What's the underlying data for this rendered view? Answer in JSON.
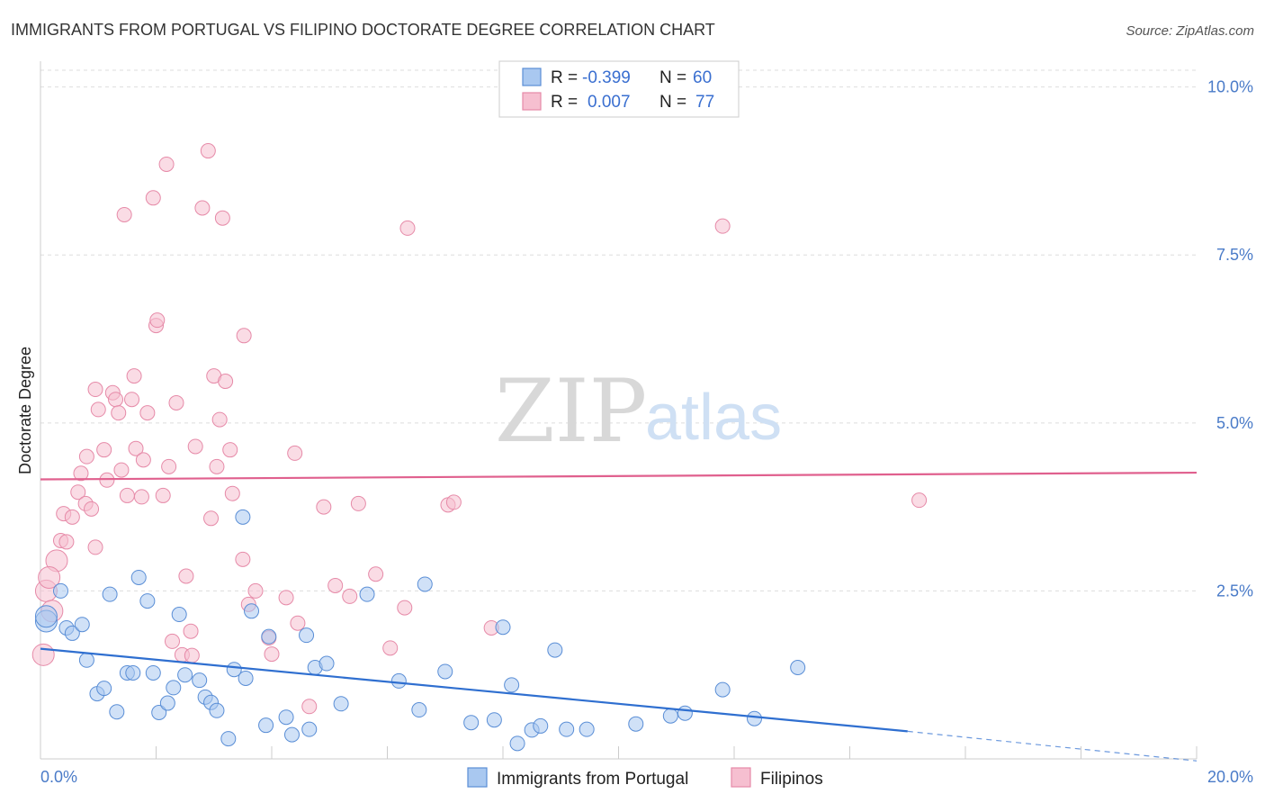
{
  "title": "IMMIGRANTS FROM PORTUGAL VS FILIPINO DOCTORATE DEGREE CORRELATION CHART",
  "source": "Source: ZipAtlas.com",
  "watermark": {
    "zip": "ZIP",
    "atlas": "atlas"
  },
  "colors": {
    "blue_fill": "#a9c8f0",
    "blue_stroke": "#5a8ed6",
    "blue_line": "#2f6fd0",
    "pink_fill": "#f6bfd0",
    "pink_stroke": "#e68aa8",
    "pink_line": "#e0608e",
    "grid": "#dddddd",
    "tick_text": "#4a7bc8"
  },
  "stats": {
    "blue": {
      "r_label": "R =",
      "r_value": "-0.399",
      "n_label": "N =",
      "n_value": "60"
    },
    "pink": {
      "r_label": "R =",
      "r_value": "0.007",
      "n_label": "N =",
      "n_value": "77"
    }
  },
  "chart_data": {
    "type": "scatter",
    "title": "IMMIGRANTS FROM PORTUGAL VS FILIPINO DOCTORATE DEGREE CORRELATION CHART",
    "xlabel": "",
    "ylabel": "Doctorate Degree",
    "xlim": [
      0,
      20
    ],
    "ylim": [
      0,
      10.25
    ],
    "x_tick_labels": [
      {
        "value": 0,
        "label": "0.0%"
      },
      {
        "value": 20,
        "label": "20.0%"
      }
    ],
    "y_tick_labels": [
      {
        "value": 2.5,
        "label": "2.5%"
      },
      {
        "value": 5.0,
        "label": "5.0%"
      },
      {
        "value": 7.5,
        "label": "7.5%"
      },
      {
        "value": 10.0,
        "label": "10.0%"
      }
    ],
    "grid": true,
    "legend_position": "bottom-center",
    "series": [
      {
        "name": "Immigrants from Portugal",
        "color": "#a9c8f0",
        "trend": {
          "x": [
            0,
            15
          ],
          "y": [
            1.64,
            0.41
          ],
          "dashed_extension_to": [
            20,
            -0.03
          ]
        },
        "points": [
          [
            0.1,
            2.05
          ],
          [
            0.1,
            2.12
          ],
          [
            0.35,
            2.5
          ],
          [
            0.45,
            1.95
          ],
          [
            0.55,
            1.87
          ],
          [
            0.72,
            2.0
          ],
          [
            0.8,
            1.47
          ],
          [
            0.98,
            0.97
          ],
          [
            1.1,
            1.05
          ],
          [
            1.2,
            2.45
          ],
          [
            1.32,
            0.7
          ],
          [
            1.5,
            1.28
          ],
          [
            1.6,
            1.28
          ],
          [
            1.7,
            2.7
          ],
          [
            1.85,
            2.35
          ],
          [
            1.95,
            1.28
          ],
          [
            2.05,
            0.69
          ],
          [
            2.2,
            0.83
          ],
          [
            2.3,
            1.06
          ],
          [
            2.4,
            2.15
          ],
          [
            2.5,
            1.25
          ],
          [
            2.75,
            1.17
          ],
          [
            2.85,
            0.92
          ],
          [
            2.95,
            0.84
          ],
          [
            3.05,
            0.72
          ],
          [
            3.25,
            0.3
          ],
          [
            3.35,
            1.33
          ],
          [
            3.5,
            3.6
          ],
          [
            3.55,
            1.2
          ],
          [
            3.65,
            2.2
          ],
          [
            3.9,
            0.5
          ],
          [
            3.95,
            1.82
          ],
          [
            4.25,
            0.62
          ],
          [
            4.35,
            0.36
          ],
          [
            4.6,
            1.84
          ],
          [
            4.65,
            0.44
          ],
          [
            4.75,
            1.36
          ],
          [
            4.95,
            1.42
          ],
          [
            5.2,
            0.82
          ],
          [
            5.65,
            2.45
          ],
          [
            6.2,
            1.16
          ],
          [
            6.55,
            0.73
          ],
          [
            6.65,
            2.6
          ],
          [
            7.0,
            1.3
          ],
          [
            7.45,
            0.54
          ],
          [
            7.85,
            0.58
          ],
          [
            8.0,
            1.96
          ],
          [
            8.15,
            1.1
          ],
          [
            8.25,
            0.23
          ],
          [
            8.5,
            0.43
          ],
          [
            8.65,
            0.49
          ],
          [
            8.9,
            1.62
          ],
          [
            9.1,
            0.44
          ],
          [
            9.45,
            0.44
          ],
          [
            10.3,
            0.52
          ],
          [
            10.9,
            0.64
          ],
          [
            11.15,
            0.68
          ],
          [
            11.8,
            1.03
          ],
          [
            12.35,
            0.6
          ],
          [
            13.1,
            1.36
          ]
        ]
      },
      {
        "name": "Filipinos",
        "color": "#f6bfd0",
        "trend": {
          "x": [
            0,
            20
          ],
          "y": [
            4.16,
            4.26
          ]
        },
        "points": [
          [
            0.05,
            1.55
          ],
          [
            0.1,
            2.5
          ],
          [
            0.2,
            2.2
          ],
          [
            0.28,
            2.95
          ],
          [
            0.35,
            3.25
          ],
          [
            0.4,
            3.65
          ],
          [
            0.45,
            3.23
          ],
          [
            0.55,
            3.6
          ],
          [
            0.65,
            3.97
          ],
          [
            0.7,
            4.25
          ],
          [
            0.78,
            3.8
          ],
          [
            0.8,
            4.5
          ],
          [
            0.88,
            3.72
          ],
          [
            0.95,
            5.5
          ],
          [
            0.95,
            3.15
          ],
          [
            1.0,
            5.2
          ],
          [
            1.1,
            4.6
          ],
          [
            1.15,
            4.15
          ],
          [
            1.25,
            5.45
          ],
          [
            1.3,
            5.35
          ],
          [
            1.35,
            5.15
          ],
          [
            1.4,
            4.3
          ],
          [
            1.45,
            8.1
          ],
          [
            1.5,
            3.92
          ],
          [
            1.58,
            5.35
          ],
          [
            1.62,
            5.7
          ],
          [
            1.65,
            4.62
          ],
          [
            1.75,
            3.9
          ],
          [
            1.78,
            4.45
          ],
          [
            1.85,
            5.15
          ],
          [
            1.95,
            8.35
          ],
          [
            2.0,
            6.45
          ],
          [
            2.02,
            6.53
          ],
          [
            2.12,
            3.92
          ],
          [
            2.18,
            8.85
          ],
          [
            2.22,
            4.35
          ],
          [
            2.28,
            1.75
          ],
          [
            2.35,
            5.3
          ],
          [
            2.45,
            1.55
          ],
          [
            2.52,
            2.72
          ],
          [
            2.6,
            1.9
          ],
          [
            2.62,
            1.54
          ],
          [
            2.68,
            4.65
          ],
          [
            2.8,
            8.2
          ],
          [
            2.9,
            9.05
          ],
          [
            2.95,
            3.58
          ],
          [
            3.0,
            5.7
          ],
          [
            3.05,
            4.35
          ],
          [
            3.1,
            5.05
          ],
          [
            3.15,
            8.05
          ],
          [
            3.2,
            5.62
          ],
          [
            3.28,
            4.6
          ],
          [
            3.32,
            3.95
          ],
          [
            3.5,
            2.97
          ],
          [
            3.52,
            6.3
          ],
          [
            3.6,
            2.3
          ],
          [
            3.72,
            2.5
          ],
          [
            3.95,
            1.8
          ],
          [
            4.0,
            1.56
          ],
          [
            4.25,
            2.4
          ],
          [
            4.4,
            4.55
          ],
          [
            4.45,
            2.02
          ],
          [
            4.65,
            0.78
          ],
          [
            4.9,
            3.75
          ],
          [
            5.1,
            2.58
          ],
          [
            5.35,
            2.42
          ],
          [
            5.5,
            3.8
          ],
          [
            5.8,
            2.75
          ],
          [
            6.05,
            1.65
          ],
          [
            6.3,
            2.25
          ],
          [
            6.35,
            7.9
          ],
          [
            7.05,
            3.78
          ],
          [
            7.15,
            3.82
          ],
          [
            7.8,
            1.95
          ],
          [
            11.8,
            7.93
          ],
          [
            15.2,
            3.85
          ],
          [
            0.15,
            2.7
          ]
        ]
      }
    ]
  }
}
